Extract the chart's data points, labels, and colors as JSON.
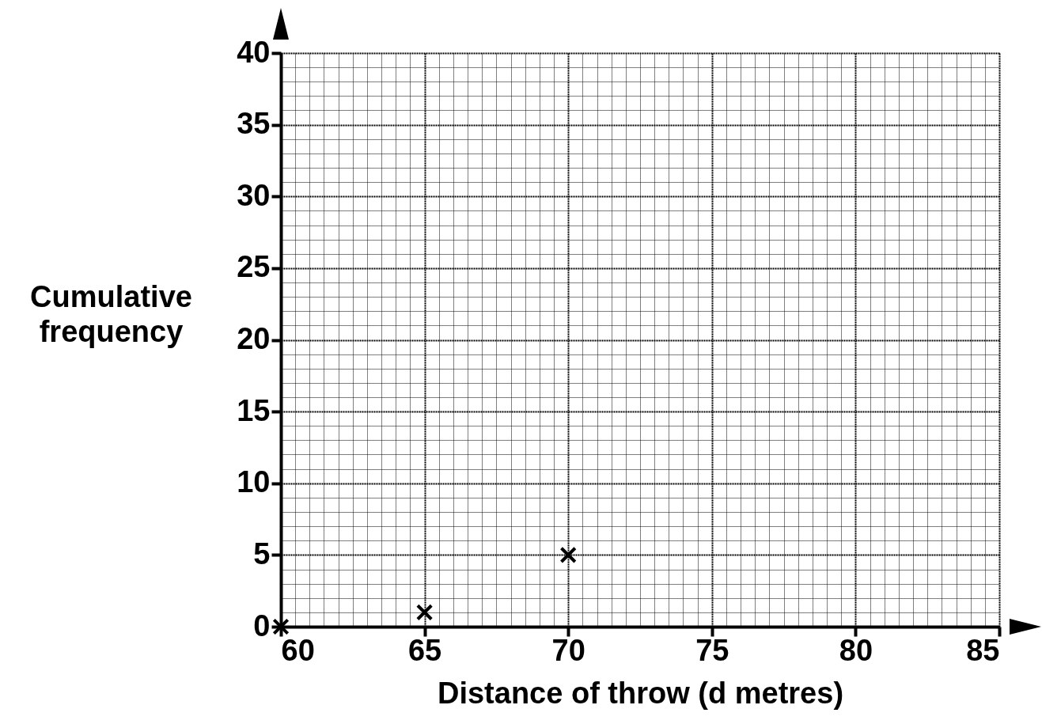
{
  "chart_data": {
    "type": "scatter",
    "xlabel": "Distance of throw (d metres)",
    "ylabel": "Cumulative frequency",
    "x": [
      60,
      65,
      70
    ],
    "series": [
      {
        "color": "#000000",
        "values": [
          0,
          1,
          5
        ]
      }
    ],
    "xlim": [
      60,
      85
    ],
    "ylim": [
      0,
      40
    ],
    "xticks": [
      60,
      {
        "value": 60.5,
        "label": null
      },
      {
        "value": 61,
        "label": null
      },
      {
        "value": 61.5,
        "label": null
      },
      {
        "value": 62,
        "label": null
      },
      {
        "value": 62.5,
        "label": null
      },
      {
        "value": 63,
        "label": null
      },
      {
        "value": 63.5,
        "label": null
      },
      {
        "value": 64,
        "label": null
      },
      {
        "value": 64.5,
        "label": null
      },
      65,
      {
        "value": 65.5,
        "label": null
      },
      {
        "value": 66,
        "label": null
      },
      {
        "value": 66.5,
        "label": null
      },
      {
        "value": 67,
        "label": null
      },
      {
        "value": 67.5,
        "label": null
      },
      {
        "value": 68,
        "label": null
      },
      {
        "value": 68.5,
        "label": null
      },
      {
        "value": 69,
        "label": null
      },
      {
        "value": 69.5,
        "label": null
      },
      70,
      {
        "value": 70.5,
        "label": null
      },
      {
        "value": 71,
        "label": null
      },
      {
        "value": 71.5,
        "label": null
      },
      {
        "value": 72,
        "label": null
      },
      {
        "value": 72.5,
        "label": null
      },
      {
        "value": 73,
        "label": null
      },
      {
        "value": 73.5,
        "label": null
      },
      {
        "value": 74,
        "label": null
      },
      {
        "value": 74.5,
        "label": null
      },
      75,
      {
        "value": 75.5,
        "label": null
      },
      {
        "value": 76,
        "label": null
      },
      {
        "value": 76.5,
        "label": null
      },
      {
        "value": 77,
        "label": null
      },
      {
        "value": 77.5,
        "label": null
      },
      {
        "value": 78,
        "label": null
      },
      {
        "value": 78.5,
        "label": null
      },
      {
        "value": 79,
        "label": null
      },
      {
        "value": 79.5,
        "label": null
      },
      80,
      {
        "value": 80.5,
        "label": null
      },
      {
        "value": 81,
        "label": null
      },
      {
        "value": 81.5,
        "label": null
      },
      {
        "value": 82,
        "label": null
      },
      {
        "value": 82.5,
        "label": null
      },
      {
        "value": 83,
        "label": null
      },
      {
        "value": 83.5,
        "label": null
      },
      {
        "value": 84,
        "label": null
      },
      {
        "value": 84.5,
        "label": null
      },
      85
    ],
    "yticks": [
      0,
      {
        "value": 1,
        "label": null
      },
      {
        "value": 2,
        "label": null
      },
      {
        "value": 3,
        "label": null
      },
      {
        "value": 4,
        "label": null
      },
      5,
      {
        "value": 6,
        "label": null
      },
      {
        "value": 7,
        "label": null
      },
      {
        "value": 8,
        "label": null
      },
      {
        "value": 9,
        "label": null
      },
      10,
      {
        "value": 11,
        "label": null
      },
      {
        "value": 12,
        "label": null
      },
      {
        "value": 13,
        "label": null
      },
      {
        "value": 14,
        "label": null
      },
      15,
      {
        "value": 16,
        "label": null
      },
      {
        "value": 17,
        "label": null
      },
      {
        "value": 18,
        "label": null
      },
      {
        "value": 19,
        "label": null
      },
      20,
      {
        "value": 21,
        "label": null
      },
      {
        "value": 22,
        "label": null
      },
      {
        "value": 23,
        "label": null
      },
      {
        "value": 24,
        "label": null
      },
      25,
      {
        "value": 26,
        "label": null
      },
      {
        "value": 27,
        "label": null
      },
      {
        "value": 28,
        "label": null
      },
      {
        "value": 29,
        "label": null
      },
      30,
      {
        "value": 31,
        "label": null
      },
      {
        "value": 32,
        "label": null
      },
      {
        "value": 33,
        "label": null
      },
      {
        "value": 34,
        "label": null
      },
      35,
      {
        "value": 36,
        "label": null
      },
      {
        "value": 37,
        "label": null
      },
      {
        "value": 38,
        "label": null
      },
      {
        "value": 39,
        "label": null
      },
      40
    ],
    "grid": true,
    "marker": "cross"
  }
}
